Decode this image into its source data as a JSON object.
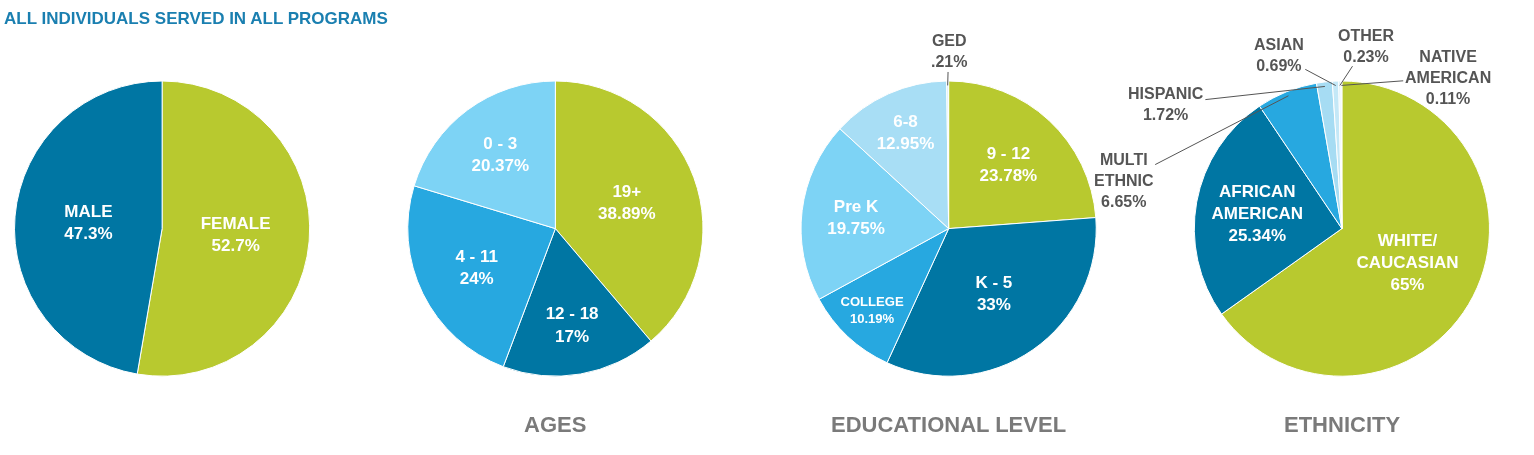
{
  "chart_data": [
    {
      "type": "pie",
      "title": "ALL INDIVIDUALS SERVED IN ALL PROGRAMS",
      "categories": [
        "FEMALE",
        "MALE"
      ],
      "values": [
        52.7,
        47.3
      ],
      "value_labels": [
        "52.7%",
        "47.3%"
      ],
      "colors": [
        "#b8c92f",
        "#0076a3"
      ]
    },
    {
      "type": "pie",
      "title": "AGES",
      "categories": [
        "19+",
        "12 - 18",
        "4 - 11",
        "0 - 3"
      ],
      "values": [
        38.89,
        17,
        24,
        20.37
      ],
      "value_labels": [
        "38.89%",
        "17%",
        "24%",
        "20.37%"
      ],
      "colors": [
        "#b8c92f",
        "#0076a3",
        "#27a8e0",
        "#7dd3f5"
      ]
    },
    {
      "type": "pie",
      "title": "EDUCATIONAL LEVEL",
      "categories": [
        "9 - 12",
        "K - 5",
        "COLLEGE",
        "Pre K",
        "6-8",
        "GED"
      ],
      "values": [
        23.78,
        33,
        10.19,
        19.75,
        12.95,
        0.21
      ],
      "value_labels": [
        "23.78%",
        "33%",
        "10.19%",
        "19.75%",
        "12.95%",
        ".21%"
      ],
      "colors": [
        "#b8c92f",
        "#0076a3",
        "#27a8e0",
        "#7dd3f5",
        "#a8def5",
        "#d6eef8"
      ]
    },
    {
      "type": "pie",
      "title": "ETHNICITY",
      "categories": [
        "WHITE/\nCAUCASIAN",
        "AFRICAN\nAMERICAN",
        "MULTI\nETHNIC",
        "HISPANIC",
        "ASIAN",
        "OTHER",
        "NATIVE\nAMERICAN"
      ],
      "values": [
        65,
        25.34,
        6.65,
        1.72,
        0.69,
        0.23,
        0.11
      ],
      "value_labels": [
        "65%",
        "25.34%",
        "6.65%",
        "1.72%",
        "0.69%",
        "0.23%",
        "0.11%"
      ],
      "colors": [
        "#b8c92f",
        "#0076a3",
        "#27a8e0",
        "#a6dcf3",
        "#c4e8f7",
        "#d6eef8",
        "#e4f3fa"
      ]
    }
  ]
}
